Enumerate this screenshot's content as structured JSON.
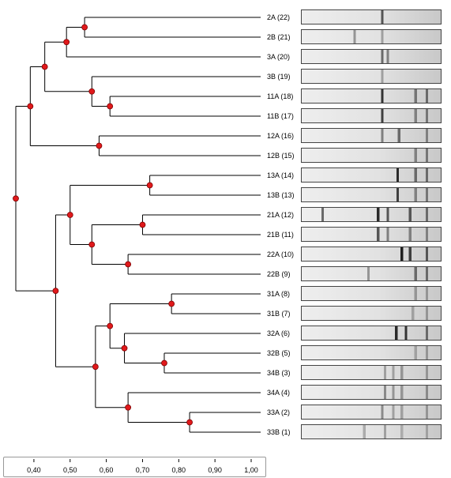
{
  "dendrogram": {
    "leaves": [
      {
        "label": "2A (22)"
      },
      {
        "label": "2B (21)"
      },
      {
        "label": "3A (20)"
      },
      {
        "label": "3B (19)"
      },
      {
        "label": "11A (18)"
      },
      {
        "label": "11B (17)"
      },
      {
        "label": "12A (16)"
      },
      {
        "label": "12B (15)"
      },
      {
        "label": "13A (14)"
      },
      {
        "label": "13B (13)"
      },
      {
        "label": "21A (12)"
      },
      {
        "label": "21B (11)"
      },
      {
        "label": "22A (10)"
      },
      {
        "label": "22B (9)"
      },
      {
        "label": "31A (8)"
      },
      {
        "label": "31B (7)"
      },
      {
        "label": "32A (6)"
      },
      {
        "label": "32B (5)"
      },
      {
        "label": "34B (3)"
      },
      {
        "label": "34A (4)"
      },
      {
        "label": "33A (2)"
      },
      {
        "label": "33B (1)"
      }
    ],
    "merges": [
      {
        "id": "a",
        "children": [
          0,
          1
        ],
        "similarity": 0.54
      },
      {
        "id": "b",
        "children": [
          "a",
          2
        ],
        "similarity": 0.49
      },
      {
        "id": "c",
        "children": [
          4,
          5
        ],
        "similarity": 0.61
      },
      {
        "id": "d",
        "children": [
          3,
          "c"
        ],
        "similarity": 0.56
      },
      {
        "id": "e",
        "children": [
          "b",
          "d"
        ],
        "similarity": 0.43
      },
      {
        "id": "f",
        "children": [
          6,
          7
        ],
        "similarity": 0.58
      },
      {
        "id": "g",
        "children": [
          "e",
          "f"
        ],
        "similarity": 0.39
      },
      {
        "id": "h",
        "children": [
          8,
          9
        ],
        "similarity": 0.72
      },
      {
        "id": "i",
        "children": [
          10,
          11
        ],
        "similarity": 0.7
      },
      {
        "id": "j",
        "children": [
          12,
          13
        ],
        "similarity": 0.66
      },
      {
        "id": "k",
        "children": [
          "i",
          "j"
        ],
        "similarity": 0.56
      },
      {
        "id": "l",
        "children": [
          "h",
          "k"
        ],
        "similarity": 0.5
      },
      {
        "id": "m",
        "children": [
          14,
          15
        ],
        "similarity": 0.78
      },
      {
        "id": "n",
        "children": [
          17,
          18
        ],
        "similarity": 0.76
      },
      {
        "id": "o",
        "children": [
          16,
          "n"
        ],
        "similarity": 0.65
      },
      {
        "id": "p",
        "children": [
          "m",
          "o"
        ],
        "similarity": 0.61
      },
      {
        "id": "q",
        "children": [
          20,
          21
        ],
        "similarity": 0.83
      },
      {
        "id": "r",
        "children": [
          19,
          "q"
        ],
        "similarity": 0.66
      },
      {
        "id": "s",
        "children": [
          "p",
          "r"
        ],
        "similarity": 0.57
      },
      {
        "id": "t",
        "children": [
          "l",
          "s"
        ],
        "similarity": 0.46
      },
      {
        "id": "u",
        "children": [
          "g",
          "t"
        ],
        "similarity": 0.35
      }
    ]
  },
  "scale": {
    "min": 0.35,
    "max": 1.0,
    "ticks": [
      0.4,
      0.5,
      0.6,
      0.7,
      0.8,
      0.9,
      1.0
    ],
    "tick_labels": [
      "0,40",
      "0,50",
      "0,60",
      "0,70",
      "0,80",
      "0,90",
      "1,00"
    ]
  },
  "gel": {
    "lanes": [
      {
        "bands": [
          [
            0.58,
            0.7
          ]
        ]
      },
      {
        "bands": [
          [
            0.38,
            0.4
          ],
          [
            0.58,
            0.35
          ]
        ]
      },
      {
        "bands": [
          [
            0.58,
            0.6
          ],
          [
            0.62,
            0.5
          ]
        ]
      },
      {
        "bands": [
          [
            0.58,
            0.35
          ]
        ]
      },
      {
        "bands": [
          [
            0.58,
            0.85
          ],
          [
            0.82,
            0.55
          ],
          [
            0.9,
            0.6
          ]
        ]
      },
      {
        "bands": [
          [
            0.58,
            0.8
          ],
          [
            0.82,
            0.5
          ],
          [
            0.9,
            0.55
          ]
        ]
      },
      {
        "bands": [
          [
            0.58,
            0.5
          ],
          [
            0.7,
            0.6
          ],
          [
            0.9,
            0.5
          ]
        ]
      },
      {
        "bands": [
          [
            0.82,
            0.5
          ],
          [
            0.9,
            0.55
          ]
        ]
      },
      {
        "bands": [
          [
            0.69,
            0.9
          ],
          [
            0.82,
            0.6
          ],
          [
            0.9,
            0.6
          ]
        ]
      },
      {
        "bands": [
          [
            0.69,
            0.8
          ],
          [
            0.82,
            0.5
          ],
          [
            0.9,
            0.55
          ]
        ]
      },
      {
        "bands": [
          [
            0.15,
            0.6
          ],
          [
            0.55,
            0.9
          ],
          [
            0.62,
            0.7
          ],
          [
            0.78,
            0.7
          ],
          [
            0.9,
            0.6
          ]
        ]
      },
      {
        "bands": [
          [
            0.55,
            0.7
          ],
          [
            0.62,
            0.5
          ],
          [
            0.78,
            0.5
          ],
          [
            0.9,
            0.5
          ]
        ]
      },
      {
        "bands": [
          [
            0.72,
            0.95
          ],
          [
            0.78,
            0.8
          ],
          [
            0.9,
            0.7
          ]
        ]
      },
      {
        "bands": [
          [
            0.48,
            0.4
          ],
          [
            0.82,
            0.6
          ],
          [
            0.9,
            0.6
          ]
        ]
      },
      {
        "bands": [
          [
            0.82,
            0.4
          ],
          [
            0.9,
            0.4
          ]
        ]
      },
      {
        "bands": [
          [
            0.8,
            0.35
          ],
          [
            0.9,
            0.4
          ]
        ]
      },
      {
        "bands": [
          [
            0.68,
            0.9
          ],
          [
            0.75,
            0.85
          ],
          [
            0.9,
            0.6
          ]
        ]
      },
      {
        "bands": [
          [
            0.82,
            0.35
          ],
          [
            0.9,
            0.4
          ]
        ]
      },
      {
        "bands": [
          [
            0.6,
            0.35
          ],
          [
            0.66,
            0.35
          ],
          [
            0.72,
            0.4
          ],
          [
            0.9,
            0.4
          ]
        ]
      },
      {
        "bands": [
          [
            0.6,
            0.45
          ],
          [
            0.66,
            0.4
          ],
          [
            0.72,
            0.4
          ],
          [
            0.9,
            0.45
          ]
        ]
      },
      {
        "bands": [
          [
            0.58,
            0.45
          ],
          [
            0.66,
            0.35
          ],
          [
            0.72,
            0.35
          ],
          [
            0.9,
            0.4
          ]
        ]
      },
      {
        "bands": [
          [
            0.45,
            0.3
          ],
          [
            0.6,
            0.35
          ],
          [
            0.72,
            0.3
          ],
          [
            0.9,
            0.35
          ]
        ]
      }
    ]
  },
  "colors": {
    "line": "#000000",
    "node": "#e0191b",
    "node_stroke": "#7a0000"
  }
}
